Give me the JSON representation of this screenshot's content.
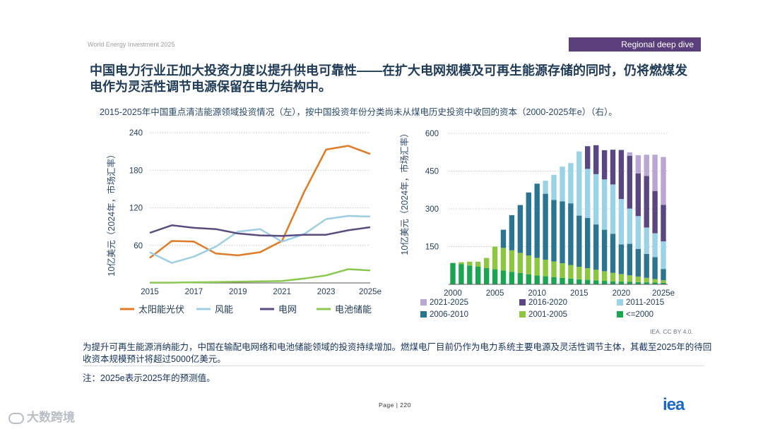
{
  "header": {
    "report": "World Energy Investment 2025",
    "badge": "Regional deep dive"
  },
  "title": "中国电力行业正加大投资力度以提升供电可靠性——在扩大电网规模及可再生能源存储的同时，仍将燃煤发电作为灵活性调节电源保留在电力结构中。",
  "subtitle": "2015-2025年中国重点清洁能源领域投资情况（左），按中国投资年份分类尚未从煤电历史投资中收回的资本（2000-2025年e）（右）。",
  "colors": {
    "solar": "#e07b27",
    "wind": "#9ecfe0",
    "grid": "#5b4a7f",
    "battery": "#8cc751",
    "c2021_2025": "#b9a6d3",
    "c2016_2020": "#5a4682",
    "c2011_2015": "#9bd3e6",
    "c2006_2010": "#2c7590",
    "c2001_2005": "#8dc63f",
    "c_le2000": "#1aa651"
  },
  "chart_data": [
    {
      "type": "line",
      "ylabel": "10亿美元（2024年，市场汇率）",
      "ylim": [
        0,
        240
      ],
      "yticks": [
        "60",
        "120",
        "180",
        "240"
      ],
      "x": [
        2015,
        2016,
        2017,
        2018,
        2019,
        2020,
        2021,
        2022,
        2023,
        2024,
        2025
      ],
      "xtick_labels": [
        "2015",
        "2017",
        "2019",
        "2021",
        "2023",
        "2025e"
      ],
      "series": [
        {
          "name": "太阳能光伏",
          "color_key": "solar",
          "values": [
            40,
            67,
            66,
            47,
            44,
            49,
            67,
            145,
            213,
            219,
            206
          ]
        },
        {
          "name": "风能",
          "color_key": "wind",
          "values": [
            49,
            32,
            42,
            58,
            82,
            86,
            66,
            78,
            102,
            107,
            106
          ]
        },
        {
          "name": "电网",
          "color_key": "grid",
          "values": [
            80,
            92,
            88,
            86,
            79,
            76,
            75,
            77,
            77,
            84,
            89
          ]
        },
        {
          "name": "电池储能",
          "color_key": "battery",
          "values": [
            0.5,
            0.5,
            1,
            1.5,
            2,
            2.5,
            3,
            7,
            12,
            22,
            20
          ]
        }
      ]
    },
    {
      "type": "bar",
      "stacked": true,
      "ylabel": "10亿美元（2024年，市场汇率）",
      "ylim": [
        0,
        600
      ],
      "yticks": [
        "150",
        "300",
        "450",
        "600"
      ],
      "xtick_labels": [
        "2000",
        "2005",
        "2010",
        "2015",
        "2020",
        "2025e"
      ],
      "categories": [
        2000,
        2001,
        2002,
        2003,
        2004,
        2005,
        2006,
        2007,
        2008,
        2009,
        2010,
        2011,
        2012,
        2013,
        2014,
        2015,
        2016,
        2017,
        2018,
        2019,
        2020,
        2021,
        2022,
        2023,
        2024,
        2025
      ],
      "series": [
        {
          "name": "<=2000",
          "color_key": "c_le2000",
          "values": [
            85,
            80,
            75,
            70,
            65,
            60,
            55,
            50,
            45,
            40,
            35,
            32,
            29,
            26,
            23,
            20,
            18,
            16,
            14,
            12,
            11,
            10,
            9,
            8,
            7,
            6
          ]
        },
        {
          "name": "2001-2005",
          "color_key": "c2001_2005",
          "values": [
            0,
            8,
            15,
            20,
            40,
            90,
            90,
            85,
            80,
            75,
            70,
            66,
            62,
            58,
            54,
            50,
            46,
            42,
            38,
            34,
            30,
            26,
            22,
            18,
            14,
            10
          ]
        },
        {
          "name": "2006-2010",
          "color_key": "c2006_2010",
          "values": [
            0,
            0,
            0,
            0,
            0,
            0,
            72,
            140,
            190,
            250,
            295,
            262,
            244,
            246,
            245,
            203,
            200,
            180,
            165,
            155,
            118,
            125,
            110,
            95,
            87,
            45
          ]
        },
        {
          "name": "2011-2015",
          "color_key": "c2011_2015",
          "values": [
            0,
            0,
            0,
            0,
            0,
            0,
            0,
            0,
            0,
            0,
            0,
            52,
            100,
            138,
            160,
            255,
            195,
            200,
            200,
            196,
            180,
            140,
            130,
            105,
            95,
            110
          ]
        },
        {
          "name": "2016-2020",
          "color_key": "c2016_2020",
          "values": [
            0,
            0,
            0,
            0,
            0,
            0,
            0,
            0,
            0,
            0,
            0,
            0,
            0,
            0,
            0,
            0,
            90,
            115,
            116,
            138,
            195,
            210,
            170,
            205,
            168,
            145
          ]
        },
        {
          "name": "2021-2025",
          "color_key": "c2021_2025",
          "values": [
            0,
            0,
            0,
            0,
            0,
            0,
            0,
            0,
            0,
            0,
            0,
            0,
            0,
            0,
            0,
            0,
            0,
            0,
            0,
            0,
            0,
            14,
            72,
            84,
            144,
            190
          ]
        }
      ],
      "legend_order": [
        "2021-2025",
        "2016-2020",
        "2011-2015",
        "2006-2010",
        "2001-2005",
        "<=2000"
      ]
    }
  ],
  "body": "为提升可再生能源消纳能力，中国在输配电网络和电池储能领域的投资持续增加。燃煤电厂目前仍作为电力系统主要电源及灵活性调节主体，其截至2025年的待回收资本规模预计将超过5000亿美元。",
  "note": "注：2025e表示2025年的预测值。",
  "source": "IEA. CC BY 4.0.",
  "page_label": "Page | 220",
  "logo": "iea",
  "tiny_mark": "",
  "watermark": "大数跨境"
}
